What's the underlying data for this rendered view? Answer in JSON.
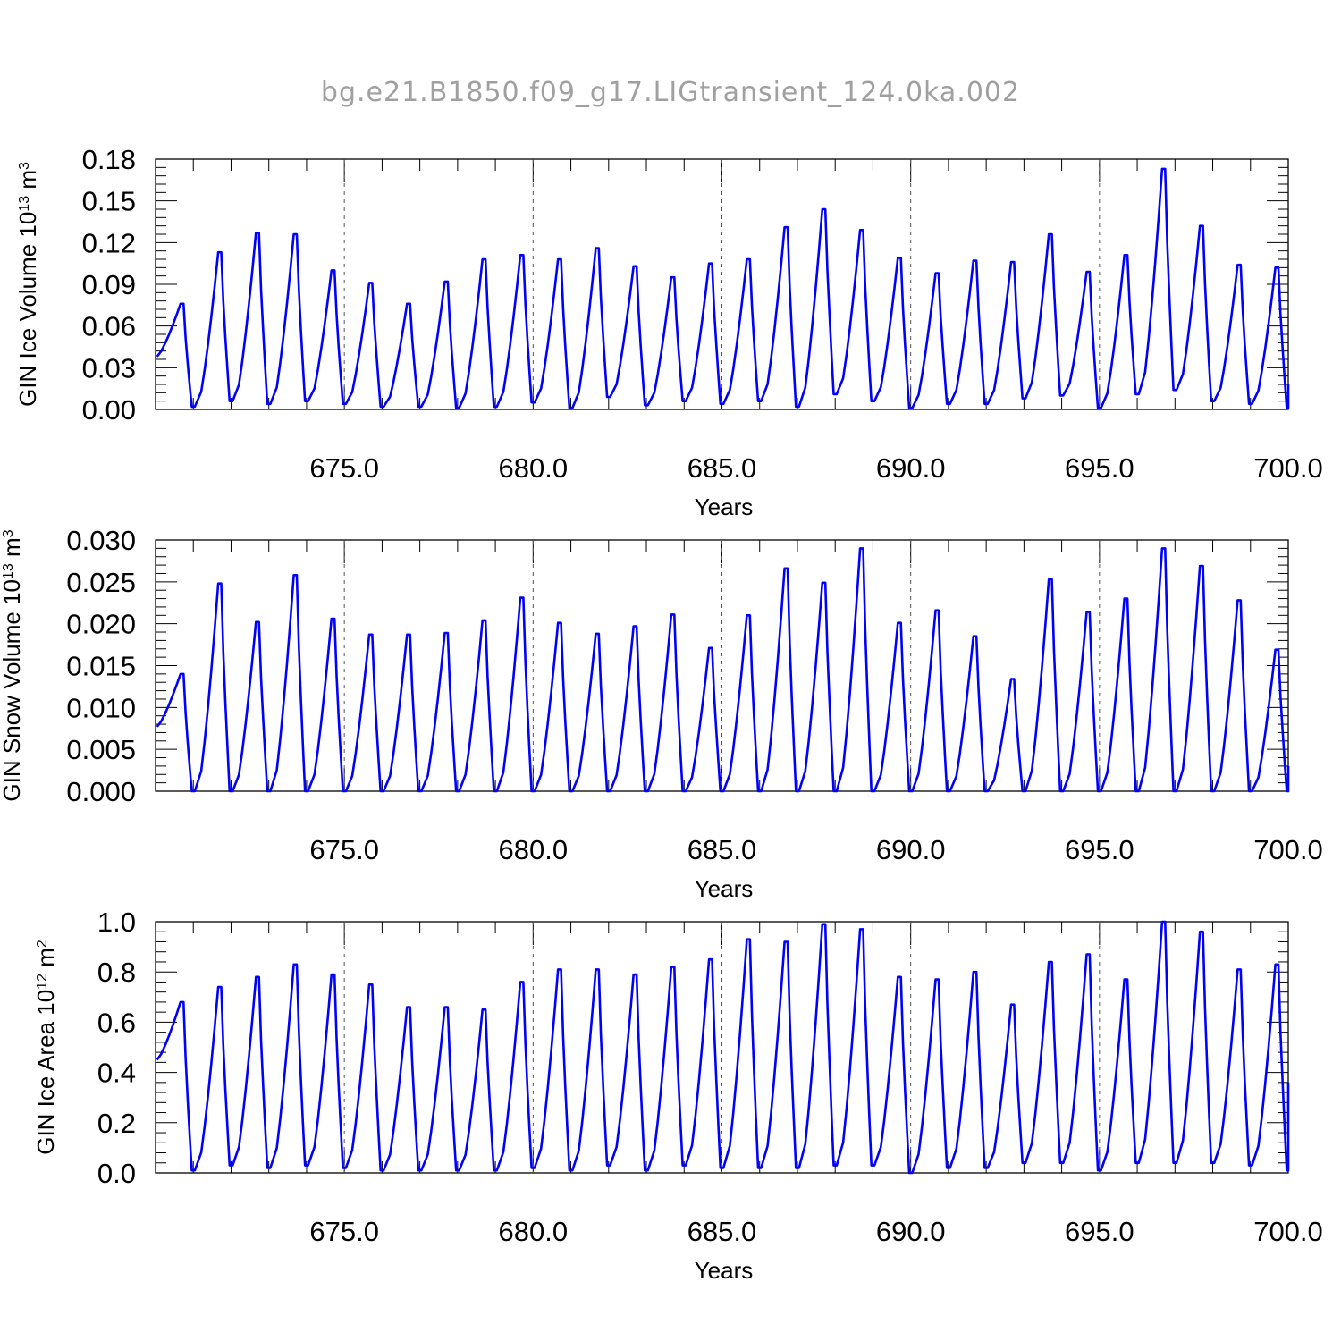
{
  "title": "bg.e21.B1850.f09_g17.LIGtransient_124.0ka.002",
  "colors": {
    "line": "#0000ff",
    "axis": "#000000",
    "grid": "#555555",
    "title": "#a0a0a0"
  },
  "chart_data": [
    {
      "type": "line",
      "ylabel": "GIN Ice Volume 10",
      "ylabel_sup": "13",
      "ylabel_unit": " m",
      "ylabel_unit_sup": "3",
      "xlabel": "Years",
      "xlim": [
        670.0,
        700.0
      ],
      "ylim": [
        0.0,
        0.18
      ],
      "xticks": [
        "675.0",
        "680.0",
        "685.0",
        "690.0",
        "695.0",
        "700.0"
      ],
      "yticks": [
        "0.00",
        "0.03",
        "0.06",
        "0.09",
        "0.12",
        "0.15",
        "0.18"
      ],
      "grid": "vertical dashed",
      "peaks": [
        0.076,
        0.113,
        0.127,
        0.126,
        0.1,
        0.091,
        0.076,
        0.092,
        0.108,
        0.111,
        0.108,
        0.116,
        0.103,
        0.095,
        0.105,
        0.108,
        0.131,
        0.144,
        0.129,
        0.109,
        0.098,
        0.107,
        0.106,
        0.126,
        0.099,
        0.111,
        0.173,
        0.132,
        0.104,
        0.102
      ],
      "troughs": [
        0.038,
        0.002,
        0.006,
        0.004,
        0.006,
        0.004,
        0.002,
        0.002,
        0.001,
        0.002,
        0.005,
        0.001,
        0.009,
        0.003,
        0.006,
        0.004,
        0.006,
        0.002,
        0.011,
        0.006,
        0.001,
        0.004,
        0.004,
        0.008,
        0.01,
        0.001,
        0.011,
        0.014,
        0.006,
        0.004,
        0.001
      ],
      "end_value": 0.018
    },
    {
      "type": "line",
      "ylabel": "GIN Snow Volume 10",
      "ylabel_sup": "13",
      "ylabel_unit": " m",
      "ylabel_unit_sup": "3",
      "xlabel": "Years",
      "xlim": [
        670.0,
        700.0
      ],
      "ylim": [
        0.0,
        0.03
      ],
      "xticks": [
        "675.0",
        "680.0",
        "685.0",
        "690.0",
        "695.0",
        "700.0"
      ],
      "yticks": [
        "0.000",
        "0.005",
        "0.010",
        "0.015",
        "0.020",
        "0.025",
        "0.030"
      ],
      "grid": "vertical dashed",
      "peaks": [
        0.014,
        0.0248,
        0.0202,
        0.0258,
        0.0206,
        0.0187,
        0.0187,
        0.0189,
        0.0204,
        0.0231,
        0.0201,
        0.0188,
        0.0197,
        0.0211,
        0.0171,
        0.021,
        0.0266,
        0.0249,
        0.029,
        0.0201,
        0.0216,
        0.0185,
        0.0134,
        0.0253,
        0.0214,
        0.023,
        0.029,
        0.0269,
        0.0228,
        0.0169
      ],
      "troughs": [
        0.0077,
        0.0,
        0.0,
        0.0,
        0.0,
        0.0,
        0.0,
        0.0,
        0.0,
        0.0,
        0.0,
        0.0,
        0.0,
        0.0,
        0.0,
        0.0,
        0.0,
        0.0,
        0.0,
        0.0,
        0.0,
        0.0,
        0.0,
        0.0,
        0.0,
        0.0,
        0.0,
        0.0,
        0.0,
        0.0,
        0.0
      ],
      "end_value": 0.003
    },
    {
      "type": "line",
      "ylabel": "GIN Ice Area 10",
      "ylabel_sup": "12",
      "ylabel_unit": " m",
      "ylabel_unit_sup": "2",
      "xlabel": "Years",
      "xlim": [
        670.0,
        700.0
      ],
      "ylim": [
        0.0,
        1.0
      ],
      "xticks": [
        "675.0",
        "680.0",
        "685.0",
        "690.0",
        "695.0",
        "700.0"
      ],
      "yticks": [
        "0.0",
        "0.2",
        "0.4",
        "0.6",
        "0.8",
        "1.0"
      ],
      "grid": "vertical dashed",
      "peaks": [
        0.68,
        0.74,
        0.78,
        0.83,
        0.79,
        0.75,
        0.66,
        0.66,
        0.65,
        0.76,
        0.81,
        0.81,
        0.79,
        0.82,
        0.85,
        0.93,
        0.92,
        0.99,
        0.97,
        0.78,
        0.77,
        0.8,
        0.67,
        0.84,
        0.87,
        0.77,
        1.0,
        0.96,
        0.81,
        0.83
      ],
      "troughs": [
        0.45,
        0.01,
        0.03,
        0.02,
        0.03,
        0.02,
        0.01,
        0.01,
        0.01,
        0.01,
        0.02,
        0.01,
        0.03,
        0.01,
        0.03,
        0.02,
        0.02,
        0.02,
        0.03,
        0.03,
        0.0,
        0.02,
        0.02,
        0.04,
        0.04,
        0.01,
        0.04,
        0.04,
        0.04,
        0.03,
        0.01
      ],
      "end_value": 0.36
    }
  ]
}
